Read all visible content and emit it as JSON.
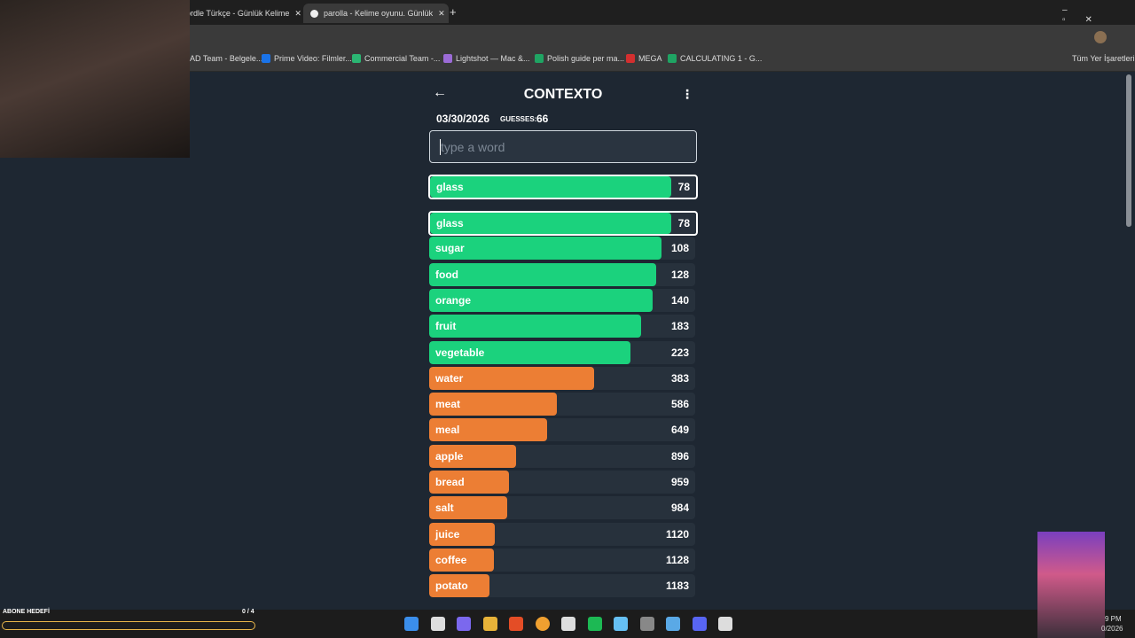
{
  "browser": {
    "tabs": [
      "ordle Türkçe - Günlük Kelime",
      "parolla - Kelime oyunu. Günlük"
    ],
    "bookmarks": [
      "AD Team - Belgele...",
      "Prime Video: Filmler...",
      "Commercial Team -...",
      "Lightshot — Mac &...",
      "Polish guide per ma...",
      "MEGA",
      "CALCULATING 1 - G..."
    ],
    "all_bookmarks": "Tüm Yer İşaretleri"
  },
  "game": {
    "title": "CONTEXTO",
    "date": "03/30/2026",
    "guesses_label": "GUESSES:",
    "guesses": "66",
    "placeholder": "type a word",
    "last_guess": {
      "word": "glass",
      "rank": 78
    },
    "guesses_list": [
      {
        "word": "glass",
        "rank": 78
      },
      {
        "word": "sugar",
        "rank": 108
      },
      {
        "word": "food",
        "rank": 128
      },
      {
        "word": "orange",
        "rank": 140
      },
      {
        "word": "fruit",
        "rank": 183
      },
      {
        "word": "vegetable",
        "rank": 223
      },
      {
        "word": "water",
        "rank": 383
      },
      {
        "word": "meat",
        "rank": 586
      },
      {
        "word": "meal",
        "rank": 649
      },
      {
        "word": "apple",
        "rank": 896
      },
      {
        "word": "bread",
        "rank": 959
      },
      {
        "word": "salt",
        "rank": 984
      },
      {
        "word": "juice",
        "rank": 1120
      },
      {
        "word": "coffee",
        "rank": 1128
      },
      {
        "word": "potato",
        "rank": 1183
      }
    ]
  },
  "overlay": {
    "goal_label": "ABONE HEDEFİ",
    "goal_count": "0 / 4"
  },
  "clock": {
    "time": "9 PM",
    "date": "0/2026"
  }
}
